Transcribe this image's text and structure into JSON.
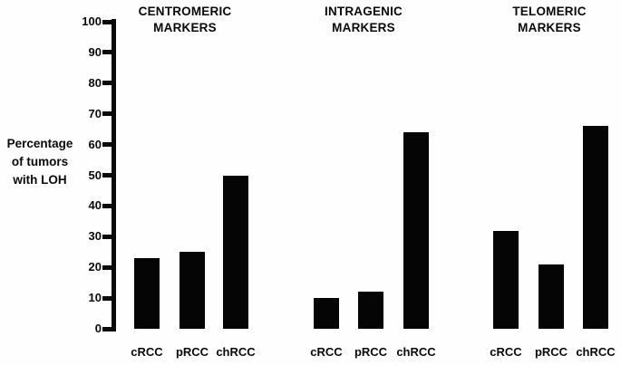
{
  "chart_data": {
    "type": "bar",
    "title": "",
    "xlabel": "",
    "ylabel": "Percentage\nof tumors\nwith LOH",
    "ylim": [
      0,
      100
    ],
    "yticks": [
      0,
      10,
      20,
      30,
      40,
      50,
      60,
      70,
      80,
      90,
      100
    ],
    "grid": false,
    "legend": false,
    "bar_color": "#050505",
    "text_color": "#0a0a0a",
    "categories": [
      "cRCC",
      "pRCC",
      "chRCC"
    ],
    "groups": [
      {
        "title": "CENTROMERIC\nMARKERS",
        "values": [
          23,
          25,
          50
        ]
      },
      {
        "title": "INTRAGENIC\nMARKERS",
        "values": [
          10,
          12,
          64
        ]
      },
      {
        "title": "TELOMERIC\nMARKERS",
        "values": [
          32,
          21,
          66
        ]
      }
    ]
  }
}
